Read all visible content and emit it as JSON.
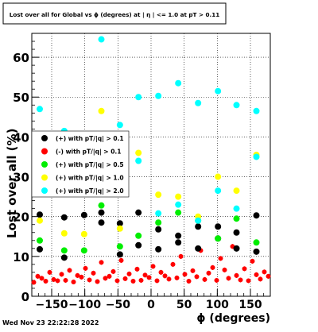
{
  "title": "Lost over all for Global vs ϕ (degrees) at | η | <= 1.0 at pT > 0.11",
  "timestamp": "Wed Nov 23 22:22:28 2022",
  "chart_data": {
    "type": "scatter",
    "title": "Lost over all for Global vs ϕ (degrees) at | η | <= 1.0 at pT > 0.11",
    "xlabel": "ϕ (degrees)",
    "ylabel": "Lost over all (%)",
    "xlim": [
      -180,
      180
    ],
    "ylim": [
      0,
      66
    ],
    "x_ticks": [
      -150,
      -100,
      -50,
      0,
      50,
      100,
      150
    ],
    "y_ticks": [
      0,
      10,
      20,
      30,
      40,
      50,
      60
    ],
    "grid": true,
    "legend_position": "left-middle",
    "series": [
      {
        "name": "(+) with pT/|q| > 0.1",
        "color": "#000000",
        "x": [
          -168,
          -131,
          -101,
          -75,
          -47,
          -19,
          11,
          41,
          71,
          101,
          129,
          159
        ],
        "y": [
          20.5,
          19.8,
          20.4,
          18.5,
          18.3,
          21.0,
          16.8,
          15.2,
          17.5,
          17.5,
          16.0,
          20.3
        ]
      },
      {
        "name": "(-) with pT/|q| > 0.1",
        "color": "#ff0000",
        "x": [
          -177,
          -171,
          -165,
          -159,
          -153,
          -147,
          -141,
          -135,
          -129,
          -123,
          -117,
          -111,
          -105,
          -99,
          -93,
          -87,
          -81,
          -75,
          -69,
          -63,
          -57,
          -51,
          -45,
          -39,
          -33,
          -27,
          -21,
          -15,
          -9,
          -3,
          3,
          9,
          15,
          21,
          27,
          33,
          39,
          45,
          51,
          57,
          63,
          69,
          75,
          81,
          87,
          93,
          99,
          105,
          111,
          117,
          123,
          129,
          135,
          141,
          147,
          153,
          159,
          165,
          171,
          177
        ],
        "y": [
          3.5,
          5.0,
          4.5,
          3.8,
          6.0,
          4.2,
          3.9,
          5.5,
          4.0,
          6.5,
          3.6,
          5.2,
          4.8,
          7.0,
          4.1,
          5.8,
          3.7,
          8.5,
          4.5,
          5.0,
          6.2,
          3.9,
          9.0,
          4.4,
          5.6,
          3.8,
          6.8,
          4.0,
          5.3,
          4.7,
          7.5,
          3.9,
          6.0,
          5.1,
          4.3,
          8.0,
          4.6,
          10.0,
          5.5,
          3.8,
          6.4,
          4.9,
          11.5,
          4.2,
          5.8,
          7.2,
          4.0,
          9.5,
          6.6,
          4.5,
          12.5,
          5.2,
          4.1,
          6.9,
          3.9,
          8.8,
          5.4,
          4.3,
          6.1,
          5.0
        ]
      },
      {
        "name": "(+) with pT/|q| > 0.5",
        "color": "#00ee00",
        "x": [
          -168,
          -131,
          -101,
          -75,
          -47,
          -19,
          11,
          41,
          71,
          101,
          129,
          159
        ],
        "y": [
          14.0,
          11.5,
          11.5,
          22.8,
          12.5,
          15.2,
          18.5,
          21.0,
          19.0,
          14.5,
          19.5,
          13.5
        ]
      },
      {
        "name": "(+) with pT/|q| > 1.0",
        "color": "#ffff00",
        "x": [
          -168,
          -131,
          -101,
          -75,
          -47,
          -19,
          11,
          41,
          71,
          101,
          129,
          159
        ],
        "y": [
          19.0,
          15.8,
          15.6,
          46.5,
          17.0,
          36.0,
          25.5,
          25.0,
          20.0,
          30.0,
          26.5,
          35.5
        ]
      },
      {
        "name": "(+) with pT/|q| > 2.0",
        "color": "#00ffff",
        "x": [
          -168,
          -131,
          -101,
          -75,
          -47,
          -19,
          11,
          41,
          71,
          101,
          129,
          159
        ],
        "y": [
          47.0,
          41.5,
          38.0,
          64.5,
          43.0,
          50.0,
          50.3,
          53.5,
          48.5,
          51.5,
          48.0,
          46.5
        ]
      },
      {
        "name": "",
        "color": "#000000",
        "x": [
          -168,
          -131,
          -75,
          -47,
          -19,
          11,
          41,
          71,
          101,
          129,
          159
        ],
        "y": [
          11.8,
          9.7,
          21.0,
          10.5,
          12.8,
          11.8,
          13.5,
          12.0,
          14.5,
          12.0,
          11.2
        ]
      },
      {
        "name": "",
        "color": "#00ffff",
        "x": [
          -19,
          11,
          41,
          71,
          101,
          129,
          159
        ],
        "y": [
          34.0,
          20.8,
          23.0,
          19.0,
          26.5,
          22.0,
          35.0
        ]
      }
    ]
  }
}
